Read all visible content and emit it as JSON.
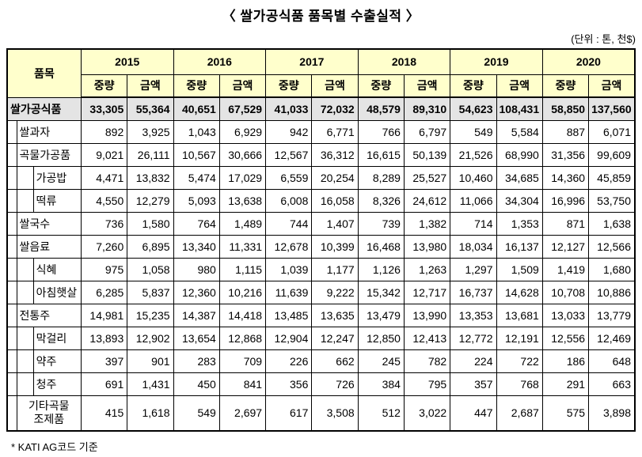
{
  "title": "〈 쌀가공식품 품목별 수출실적 〉",
  "unit_note": "(단위 : 톤, 천$)",
  "footnote": "* KATI AG코드 기준",
  "colors": {
    "header_bg": "#FFFFCC",
    "total_row_bg": "#E4E4E4",
    "border": "#000000"
  },
  "table": {
    "item_header": "품목",
    "years": [
      "2015",
      "2016",
      "2017",
      "2018",
      "2019",
      "2020"
    ],
    "sub_headers": [
      "중량",
      "금액"
    ],
    "rows": [
      {
        "label": "쌀가공식품",
        "level": 0,
        "is_total": true,
        "values": [
          "33,305",
          "55,364",
          "40,651",
          "67,529",
          "41,033",
          "72,032",
          "48,579",
          "89,310",
          "54,623",
          "108,431",
          "58,850",
          "137,560"
        ]
      },
      {
        "label": "쌀과자",
        "level": 1,
        "values": [
          "892",
          "3,925",
          "1,043",
          "6,929",
          "942",
          "6,771",
          "766",
          "6,797",
          "549",
          "5,584",
          "887",
          "6,071"
        ]
      },
      {
        "label": "곡물가공품",
        "level": 1,
        "values": [
          "9,021",
          "26,111",
          "10,567",
          "30,666",
          "12,567",
          "36,312",
          "16,615",
          "50,139",
          "21,526",
          "68,990",
          "31,356",
          "99,609"
        ]
      },
      {
        "label": "가공밥",
        "level": 2,
        "values": [
          "4,471",
          "13,832",
          "5,474",
          "17,029",
          "6,559",
          "20,254",
          "8,289",
          "25,527",
          "10,460",
          "34,685",
          "14,360",
          "45,859"
        ]
      },
      {
        "label": "떡류",
        "level": 2,
        "values": [
          "4,550",
          "12,279",
          "5,093",
          "13,638",
          "6,008",
          "16,058",
          "8,326",
          "24,612",
          "11,066",
          "34,304",
          "16,996",
          "53,750"
        ]
      },
      {
        "label": "쌀국수",
        "level": 1,
        "values": [
          "736",
          "1,580",
          "764",
          "1,489",
          "744",
          "1,407",
          "739",
          "1,382",
          "714",
          "1,353",
          "871",
          "1,638"
        ]
      },
      {
        "label": "쌀음료",
        "level": 1,
        "values": [
          "7,260",
          "6,895",
          "13,340",
          "11,331",
          "12,678",
          "10,399",
          "16,468",
          "13,980",
          "18,034",
          "16,137",
          "12,127",
          "12,566"
        ]
      },
      {
        "label": "식혜",
        "level": 2,
        "values": [
          "975",
          "1,058",
          "980",
          "1,115",
          "1,039",
          "1,177",
          "1,126",
          "1,263",
          "1,297",
          "1,509",
          "1,419",
          "1,680"
        ]
      },
      {
        "label": "아침햇살",
        "level": 2,
        "values": [
          "6,285",
          "5,837",
          "12,360",
          "10,216",
          "11,639",
          "9,222",
          "15,342",
          "12,717",
          "16,737",
          "14,628",
          "10,708",
          "10,886"
        ]
      },
      {
        "label": "전통주",
        "level": 1,
        "values": [
          "14,981",
          "15,235",
          "14,387",
          "14,418",
          "13,485",
          "13,635",
          "13,479",
          "13,990",
          "13,353",
          "13,681",
          "13,033",
          "13,779"
        ]
      },
      {
        "label": "막걸리",
        "level": 2,
        "values": [
          "13,893",
          "12,902",
          "13,654",
          "12,868",
          "12,904",
          "12,247",
          "12,850",
          "12,413",
          "12,772",
          "12,191",
          "12,556",
          "12,469"
        ]
      },
      {
        "label": "약주",
        "level": 2,
        "values": [
          "397",
          "901",
          "283",
          "709",
          "226",
          "662",
          "245",
          "782",
          "224",
          "722",
          "186",
          "648"
        ]
      },
      {
        "label": "청주",
        "level": 2,
        "values": [
          "691",
          "1,431",
          "450",
          "841",
          "356",
          "726",
          "384",
          "795",
          "357",
          "768",
          "291",
          "663"
        ]
      },
      {
        "label": "기타곡물\n조제품",
        "level": 1,
        "values": [
          "415",
          "1,618",
          "549",
          "2,697",
          "617",
          "3,508",
          "512",
          "3,022",
          "447",
          "2,687",
          "575",
          "3,898"
        ]
      }
    ]
  }
}
